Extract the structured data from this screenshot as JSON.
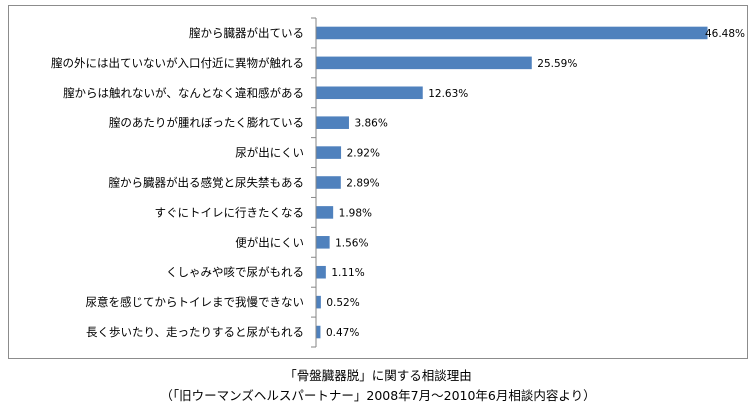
{
  "chart_data": {
    "type": "bar",
    "orientation": "horizontal",
    "categories": [
      "膣から臓器が出ている",
      "膣の外には出ていないが入口付近に異物が触れる",
      "膣からは触れないが、なんとなく違和感がある",
      "膣のあたりが腫れぼったく膨れている",
      "尿が出にくい",
      "膣から臓器が出る感覚と尿失禁もある",
      "すぐにトイレに行きたくなる",
      "便が出にくい",
      "くしゃみや咳で尿がもれる",
      "尿意を感じてからトイレまで我慢できない",
      "長く歩いたり、走ったりすると尿がもれる"
    ],
    "values": [
      46.48,
      25.59,
      12.63,
      3.86,
      2.92,
      2.89,
      1.98,
      1.56,
      1.11,
      0.52,
      0.47
    ],
    "value_labels": [
      "46.48%",
      "25.59%",
      "12.63%",
      "3.86%",
      "2.92%",
      "2.89%",
      "1.98%",
      "1.56%",
      "1.11%",
      "0.52%",
      "0.47%"
    ],
    "xlim": [
      0,
      46.48
    ],
    "bar_color": "#4f81bd",
    "grid": false,
    "legend": "none"
  },
  "caption": {
    "line1": "「骨盤臓器脱」に関する相談理由",
    "line2": "（「旧ウーマンズヘルスパートナー」2008年7月～2010年6月相談内容より）"
  }
}
